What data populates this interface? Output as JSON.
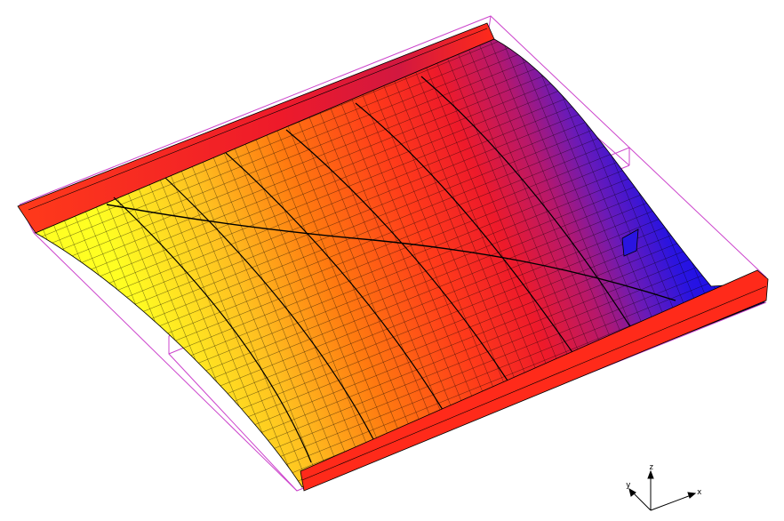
{
  "view": {
    "background": "#ffffff",
    "mesh_line_color": "#000000",
    "bounding_box_color": "#cc44cc",
    "contour_colors": [
      "#ffff22",
      "#ffb020",
      "#ff7a10",
      "#ff3a1a",
      "#ee1a2a",
      "#b8186a",
      "#6a1ab8",
      "#2a14e0",
      "#0a0aff"
    ]
  },
  "triad": {
    "x_label": "x",
    "y_label": "y",
    "z_label": "z"
  }
}
